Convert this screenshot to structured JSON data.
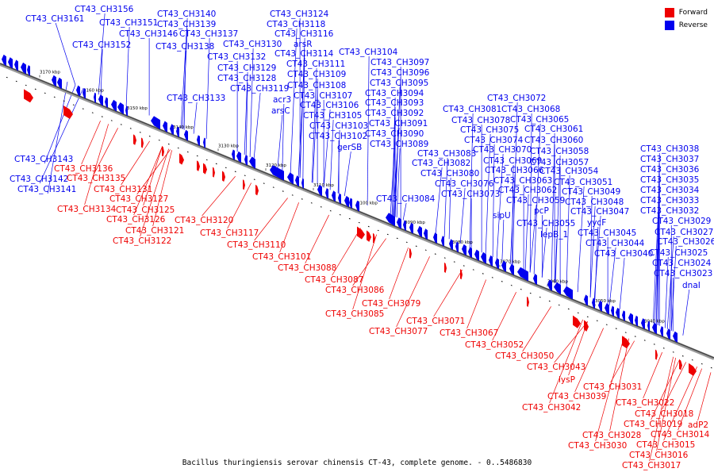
{
  "legend": {
    "forward": {
      "label": "Forward",
      "color": "#ee0000"
    },
    "reverse": {
      "label": "Reverse",
      "color": "#0000ee"
    }
  },
  "caption": "Bacillus thuringiensis serovar chinensis CT-43, complete genome. - 0..5486830",
  "axis": {
    "ticks": [
      "3170 kbp",
      "3160 kbp",
      "3150 kbp",
      "3140 kbp",
      "3130 kbp",
      "3120 kbp",
      "3110 kbp",
      "3100 kbp",
      "3090 kbp",
      "3080 kbp",
      "3070 kbp",
      "3060 kbp",
      "3050 kbp",
      "3040 kbp"
    ]
  },
  "reverse_labels": [
    "CT43_CH3156",
    "CT43_CH3161",
    "CT43_CH3151",
    "CT43_CH3152",
    "CT43_CH3146",
    "CT43_CH3140",
    "CT43_CH3139",
    "CT43_CH3137",
    "CT43_CH3138",
    "CT43_CH3124",
    "CT43_CH3118",
    "CT43_CH3116",
    "CT43_CH3130",
    "arsR",
    "CT43_CH3132",
    "CT43_CH3114",
    "CT43_CH3111",
    "CT43_CH3129",
    "CT43_CH3128",
    "CT43_CH3109",
    "CT43_CH3119",
    "CT43_CH3108",
    "CT43_CH3133",
    "CT43_CH3104",
    "CT43_CH3097",
    "CT43_CH3096",
    "CT43_CH3095",
    "CT43_CH3094",
    "CT43_CH3093",
    "CT43_CH3092",
    "CT43_CH3091",
    "CT43_CH3090",
    "CT43_CH3089",
    "acr3",
    "CT43_CH3107",
    "CT43_CH3106",
    "arsC",
    "CT43_CH3105",
    "CT43_CH3103",
    "CT43_CH3102",
    "gerSB",
    "CT43_CH3072",
    "CT43_CH3081",
    "CT43_CH3068",
    "CT43_CH3078",
    "CT43_CH3065",
    "CT43_CH3075",
    "CT43_CH3061",
    "CT43_CH3074",
    "CT43_CH3060",
    "CT43_CH3070",
    "CT43_CH3058",
    "CT43_CH3083",
    "CT43_CH3069",
    "CT43_CH3057",
    "CT43_CH3082",
    "CT43_CH3066",
    "CT43_CH3054",
    "CT43_CH3080",
    "CT43_CH3063",
    "CT43_CH3051",
    "CT43_CH3076",
    "CT43_CH3062",
    "CT43_CH3049",
    "CT43_CH3073",
    "CT43_CH3059",
    "CT43_CH3048",
    "CT43_CH3084",
    "sipU",
    "pcP",
    "CT43_CH3047",
    "CT43_CH3055",
    "yycF",
    "lepB_1",
    "CT43_CH3045",
    "CT43_CH3044",
    "CT43_CH3040",
    "CT43_CH3038",
    "CT43_CH3037",
    "CT43_CH3036",
    "CT43_CH3035",
    "CT43_CH3034",
    "CT43_CH3033",
    "CT43_CH3032",
    "CT43_CH3029",
    "CT43_CH3027",
    "CT43_CH3026",
    "CT43_CH3025",
    "CT43_CH3024",
    "CT43_CH3023",
    "dnaI",
    "CT43_CH3143",
    "CT43_CH3142",
    "CT43_CH3141"
  ],
  "forward_labels": [
    "CT43_CH3136",
    "CT43_CH3135",
    "CT43_CH3131",
    "CT43_CH3127",
    "CT43_CH3125",
    "CT43_CH3134",
    "CT43_CH3126",
    "CT43_CH3120",
    "CT43_CH3121",
    "CT43_CH3117",
    "CT43_CH3122",
    "CT43_CH3110",
    "CT43_CH3101",
    "CT43_CH3088",
    "CT43_CH3087",
    "CT43_CH3086",
    "CT43_CH3079",
    "CT43_CH3085",
    "CT43_CH3071",
    "CT43_CH3077",
    "CT43_CH3067",
    "CT43_CH3052",
    "CT43_CH3050",
    "CT43_CH3043",
    "lysP",
    "CT43_CH3031",
    "CT43_CH3039",
    "CT43_CH3042",
    "CT43_CH3022",
    "CT43_CH3018",
    "CT43_CH3019",
    "adP2",
    "CT43_CH3028",
    "CT43_CH3014",
    "CT43_CH3030",
    "CT43_CH3015",
    "CT43_CH3016",
    "CT43_CH3017"
  ]
}
